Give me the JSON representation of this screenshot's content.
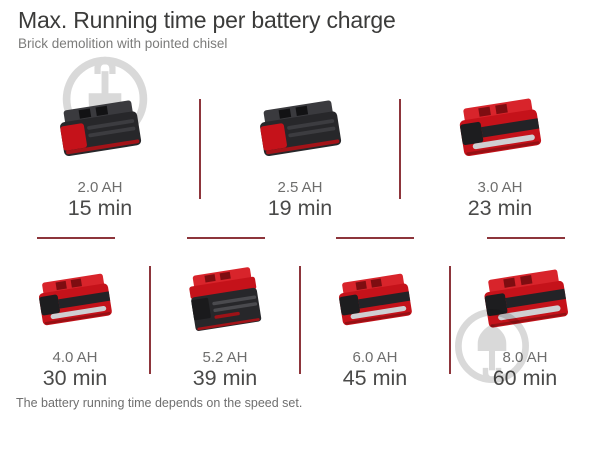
{
  "header": {
    "title": "Max. Running time per battery charge",
    "subtitle": "Brick demolition with pointed chisel"
  },
  "footer": {
    "note": "The battery running time depends on the speed set."
  },
  "rows": [
    {
      "items": [
        {
          "capacity": "2.0 AH",
          "time": "15 min",
          "variant": "black-small",
          "icon": "battery-pack-2.0ah-photo"
        },
        {
          "capacity": "2.5 AH",
          "time": "19 min",
          "variant": "black-small",
          "icon": "battery-pack-2.5ah-photo"
        },
        {
          "capacity": "3.0 AH",
          "time": "23 min",
          "variant": "red-small",
          "icon": "battery-pack-3.0ah-photo"
        }
      ]
    },
    {
      "items": [
        {
          "capacity": "4.0 AH",
          "time": "30 min",
          "variant": "red-mid",
          "icon": "battery-pack-4.0ah-photo"
        },
        {
          "capacity": "5.2 AH",
          "time": "39 min",
          "variant": "black-tall",
          "icon": "battery-pack-5.2ah-photo"
        },
        {
          "capacity": "6.0 AH",
          "time": "45 min",
          "variant": "red-mid",
          "icon": "battery-pack-6.0ah-photo"
        },
        {
          "capacity": "8.0 AH",
          "time": "60 min",
          "variant": "red-large",
          "icon": "battery-pack-8.0ah-photo"
        }
      ]
    }
  ],
  "chart_data": {
    "type": "table",
    "title": "Max. Running time per battery charge",
    "categories": [
      "2.0 AH",
      "2.5 AH",
      "3.0 AH",
      "4.0 AH",
      "5.2 AH",
      "6.0 AH",
      "8.0 AH"
    ],
    "values_min": [
      15,
      19,
      23,
      30,
      39,
      45,
      60
    ],
    "unit": "min"
  },
  "icons": {
    "watermark": "shovel-circle-watermark-icon"
  },
  "colors": {
    "accent_red": "#c5121a",
    "accent_red_top": "#d8242b",
    "accent_red_dark": "#951014",
    "divider_maroon": "#8d353b",
    "title_gray": "#3b3b3a",
    "subtitle_gray": "#7c7c7b",
    "capacity_gray": "#6e6e6d",
    "time_gray": "#4a4a49",
    "watermark_gray": "#b4b4b4",
    "background": "#ffffff"
  }
}
